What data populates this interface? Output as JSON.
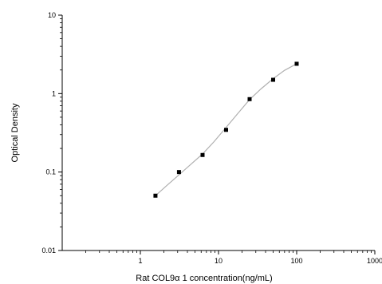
{
  "chart_data": {
    "type": "scatter",
    "title": "",
    "xlabel": "Rat COL9α 1 concentration(ng/mL)",
    "ylabel": "Optical Density",
    "x_scale": "log",
    "y_scale": "log",
    "xlim": [
      0.1,
      1000
    ],
    "ylim": [
      0.01,
      10
    ],
    "x_ticks": [
      {
        "value": 1,
        "label": "1"
      },
      {
        "value": 10,
        "label": "10"
      },
      {
        "value": 100,
        "label": "100"
      },
      {
        "value": 1000,
        "label": "1000"
      }
    ],
    "y_ticks": [
      {
        "value": 0.01,
        "label": "0.01"
      },
      {
        "value": 0.1,
        "label": "0.1"
      },
      {
        "value": 1,
        "label": "1"
      },
      {
        "value": 10,
        "label": "10"
      }
    ],
    "grid": false,
    "legend": "none",
    "series": [
      {
        "x": [
          1.56,
          3.12,
          6.25,
          12.5,
          25,
          50,
          100
        ],
        "y": [
          0.05,
          0.1,
          0.165,
          0.345,
          0.85,
          1.5,
          2.4
        ]
      }
    ],
    "fit_curve": {
      "x": [
        1.56,
        2.2,
        3.12,
        4.4,
        6.25,
        8.8,
        12.5,
        17.7,
        25,
        35,
        50,
        70,
        100
      ],
      "y": [
        0.05,
        0.068,
        0.092,
        0.125,
        0.17,
        0.245,
        0.37,
        0.56,
        0.84,
        1.15,
        1.55,
        1.98,
        2.4
      ]
    },
    "colors": {
      "marker": "#000000",
      "curve": "#b0b0b0",
      "axis": "#000000"
    }
  }
}
